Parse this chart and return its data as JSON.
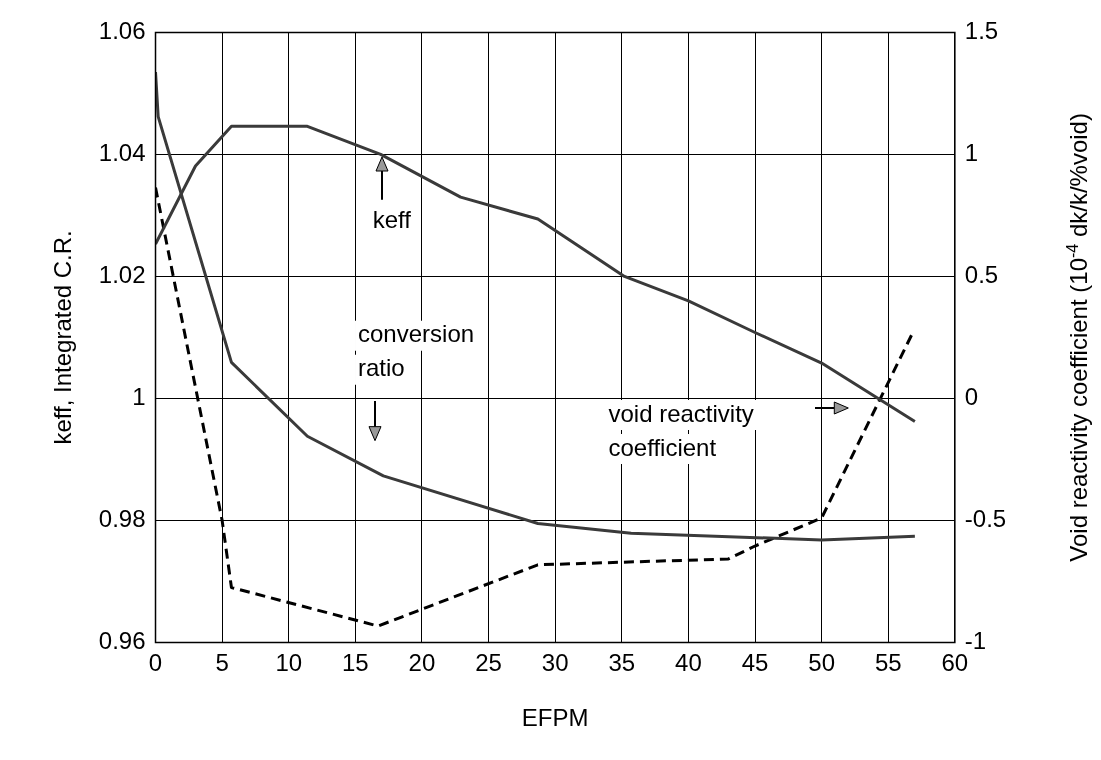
{
  "chart_data": {
    "type": "line",
    "xlabel": "EFPM",
    "ylabel": "keff, Integrated C.R.",
    "y2label": "Void reactivity coefficient (10$^{-4}$ dk/k/%void)",
    "xlim": [
      0,
      60
    ],
    "xticks": [
      0,
      5,
      10,
      15,
      20,
      25,
      30,
      35,
      40,
      45,
      50,
      55,
      60
    ],
    "ylim": [
      0.96,
      1.06
    ],
    "yticks": [
      0.96,
      0.98,
      1,
      1.02,
      1.04,
      1.06
    ],
    "y2lim": [
      -1,
      1.5
    ],
    "y2ticks": [
      -1,
      -0.5,
      0,
      0.5,
      1,
      1.5
    ],
    "grid": true,
    "legend": false,
    "marker": "none",
    "series": [
      {
        "color": "#3a3a3a",
        "line_style": "solid",
        "x": [
          0,
          3,
          5.7,
          11.4,
          16.9,
          22.9,
          28.7,
          35.2,
          40,
          45,
          50,
          57
        ],
        "values": [
          1.0253,
          1.0381,
          1.0446,
          1.0446,
          1.04,
          1.033,
          1.0294,
          1.02,
          1.016,
          1.0108,
          1.0058,
          0.9962
        ]
      },
      {
        "color": "#3a3a3a",
        "line_style": "solid",
        "x": [
          0,
          0.2,
          5.7,
          11.4,
          17.1,
          28.7,
          35.7,
          50,
          57
        ],
        "values": [
          1.0535,
          1.0462,
          1.0059,
          0.9938,
          0.9873,
          0.9795,
          0.9779,
          0.9768,
          0.9774
        ]
      },
      {
        "color": "#000000",
        "line_style": "dashed",
        "axis": "y2",
        "x": [
          0,
          5,
          5.7,
          16.7,
          28.7,
          43,
          45,
          50,
          56.8
        ],
        "values": [
          0.864,
          -0.5,
          -0.775,
          -0.933,
          -0.682,
          -0.658,
          -0.605,
          -0.49,
          0.265
        ]
      }
    ],
    "annotations": [
      "keff",
      "conversion\nratio",
      "void reactivity\ncoefficient"
    ]
  }
}
